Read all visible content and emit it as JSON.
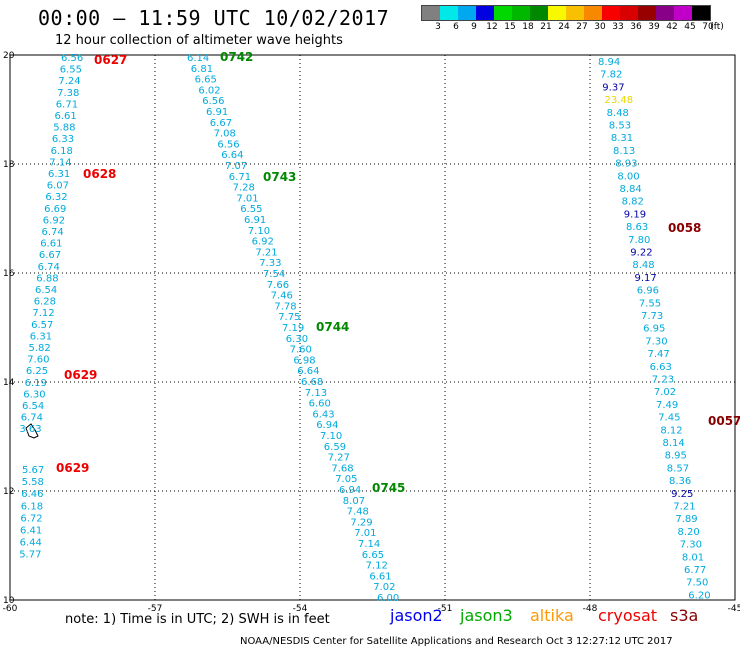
{
  "header": {
    "title": "00:00 – 11:59 UTC 10/02/2017",
    "subtitle": "12 hour collection of altimeter wave heights"
  },
  "colorbar": {
    "unit_label": "(ft)",
    "ticks": [
      "3",
      "6",
      "9",
      "12",
      "15",
      "18",
      "21",
      "24",
      "27",
      "30",
      "33",
      "36",
      "39",
      "42",
      "45",
      "70"
    ],
    "colors": [
      "#808080",
      "#00e8e8",
      "#00a8f0",
      "#0000e0",
      "#00d800",
      "#00b800",
      "#008800",
      "#f8f800",
      "#f8c000",
      "#f88800",
      "#f80000",
      "#d80000",
      "#980000",
      "#880088",
      "#c000c8",
      "#000000"
    ]
  },
  "map": {
    "x_ticks": [
      "-60",
      "-57",
      "-54",
      "-51",
      "-48",
      "-45"
    ],
    "y_ticks": [
      "20",
      "18",
      "16",
      "14",
      "12",
      "10"
    ],
    "tracks": [
      {
        "color": "#00aadd",
        "values": [
          "6.56",
          "6.55",
          "7.24",
          "7.38",
          "6.71",
          "6.61",
          "5.88",
          "6.33",
          "6.18",
          "7.14",
          "6.31",
          "6.07",
          "6.32",
          "6.69",
          "6.92",
          "6.74",
          "6.61",
          "6.67",
          "6.74",
          "6.88",
          "6.54",
          "6.28",
          "7.12",
          "6.57",
          "6.31",
          "5.82",
          "7.60",
          "6.25",
          "6.19",
          "6.30",
          "6.54",
          "6.74",
          "3.63"
        ]
      },
      {
        "color": "#00aadd",
        "values": [
          "5.67",
          "5.58",
          "6.46",
          "6.18",
          "6.72",
          "6.41",
          "6.44",
          "5.77"
        ]
      },
      {
        "color": "#00aadd",
        "values": [
          "6.14",
          "6.81",
          "6.65",
          "6.02",
          "6.56",
          "6.91",
          "6.67",
          "7.08",
          "6.56",
          "6.64",
          "7.07",
          "6.71",
          "7.28",
          "7.01",
          "6.55",
          "6.91",
          "7.10",
          "6.92",
          "7.21",
          "7.33",
          "7.54",
          "7.66",
          "7.46",
          "7.78",
          "7.75",
          "7.19",
          "6.30",
          "7.60",
          "6.98",
          "6.64",
          "6.68",
          "7.13",
          "6.60",
          "6.43",
          "6.94",
          "7.10",
          "6.59",
          "7.27",
          "7.68",
          "7.05",
          "6.94",
          "8.07",
          "7.48",
          "7.29",
          "7.01",
          "7.14",
          "6.65",
          "7.12",
          "6.61",
          "7.02",
          "6.00"
        ]
      },
      {
        "color": "#00aadd",
        "values": [
          "8.94",
          "7.82",
          "9.37",
          "23.48",
          "8.48",
          "8.53",
          "8.31",
          "8.13",
          "8.93",
          "8.00",
          "8.84",
          "8.82",
          "9.19",
          "8.63",
          "7.80",
          "9.22",
          "8.48",
          "9.17",
          "6.96",
          "7.55",
          "7.73",
          "6.95",
          "7.30",
          "7.47",
          "6.63",
          "7.23",
          "7.02",
          "7.49",
          "7.45",
          "8.12",
          "8.14",
          "8.95",
          "8.57",
          "8.36",
          "9.25",
          "7.21",
          "7.89",
          "8.20",
          "7.30",
          "8.01",
          "6.77",
          "7.50",
          "6.20"
        ]
      }
    ],
    "pass_labels": [
      {
        "text": "0627",
        "color": "#ee0000"
      },
      {
        "text": "0628",
        "color": "#ee0000"
      },
      {
        "text": "0629",
        "color": "#ee0000"
      },
      {
        "text": "0629",
        "color": "#ee0000"
      },
      {
        "text": "0742",
        "color": "#008800"
      },
      {
        "text": "0743",
        "color": "#008800"
      },
      {
        "text": "0744",
        "color": "#008800"
      },
      {
        "text": "0745",
        "color": "#008800"
      },
      {
        "text": "0058",
        "color": "#880000"
      },
      {
        "text": "0057",
        "color": "#880000"
      }
    ]
  },
  "footer": {
    "note": "note: 1) Time is in UTC; 2) SWH is in feet",
    "legend": [
      {
        "label": "jason2",
        "color": "#0000ee"
      },
      {
        "label": "jason3",
        "color": "#00aa00"
      },
      {
        "label": "altika",
        "color": "#ff9900"
      },
      {
        "label": "cryosat",
        "color": "#ee0000"
      },
      {
        "label": "s3a",
        "color": "#880000"
      }
    ],
    "credit": "NOAA/NESDIS Center for Satellite Applications and Research   Oct  3 12:27:12 UTC 2017"
  }
}
